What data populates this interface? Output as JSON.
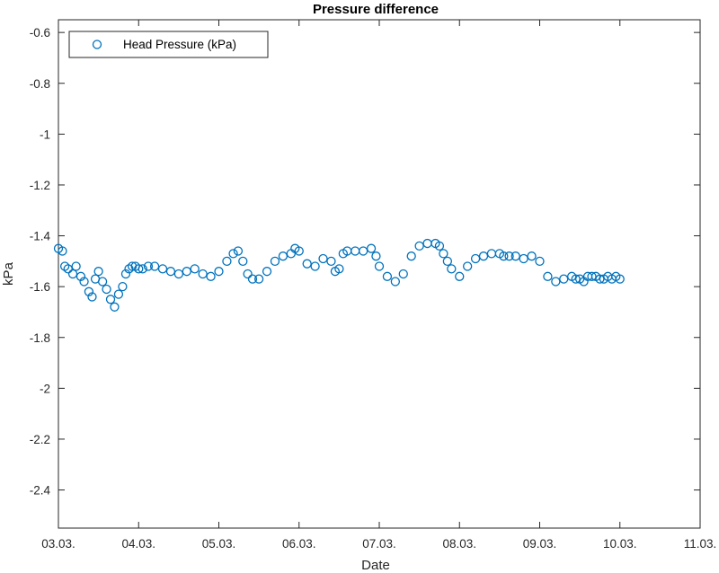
{
  "chart_data": {
    "type": "scatter",
    "title": "Pressure difference",
    "xlabel": "Date",
    "ylabel": "kPa",
    "x_tick_labels": [
      "03.03.",
      "04.03.",
      "05.03.",
      "06.03.",
      "07.03.",
      "08.03.",
      "09.03.",
      "10.03.",
      "11.03."
    ],
    "xlim": [
      0,
      8
    ],
    "ylim": [
      -2.55,
      -0.55
    ],
    "y_ticks": [
      -0.6,
      -0.8,
      -1,
      -1.2,
      -1.4,
      -1.6,
      -1.8,
      -2,
      -2.2,
      -2.4
    ],
    "y_tick_labels": [
      "-0.6",
      "-0.8",
      "-1",
      "-1.2",
      "-1.4",
      "-1.6",
      "-1.8",
      "-2",
      "-2.2",
      "-2.4"
    ],
    "grid": false,
    "legend_position": "top-left",
    "marker": "open-circle",
    "series": [
      {
        "name": "Head Pressure (kPa)",
        "color": "#0072BD",
        "x": [
          0.0,
          0.05,
          0.08,
          0.12,
          0.18,
          0.22,
          0.28,
          0.32,
          0.38,
          0.42,
          0.46,
          0.5,
          0.55,
          0.6,
          0.65,
          0.7,
          0.75,
          0.8,
          0.84,
          0.88,
          0.92,
          0.96,
          1.0,
          1.05,
          1.12,
          1.2,
          1.3,
          1.4,
          1.5,
          1.6,
          1.7,
          1.8,
          1.9,
          2.0,
          2.1,
          2.18,
          2.24,
          2.3,
          2.36,
          2.42,
          2.5,
          2.6,
          2.7,
          2.8,
          2.9,
          2.95,
          3.0,
          3.1,
          3.2,
          3.3,
          3.4,
          3.45,
          3.5,
          3.55,
          3.6,
          3.7,
          3.8,
          3.9,
          3.96,
          4.0,
          4.1,
          4.2,
          4.3,
          4.4,
          4.5,
          4.6,
          4.7,
          4.75,
          4.8,
          4.85,
          4.9,
          5.0,
          5.1,
          5.2,
          5.3,
          5.4,
          5.5,
          5.55,
          5.62,
          5.7,
          5.8,
          5.9,
          6.0,
          6.1,
          6.2,
          6.3,
          6.4,
          6.45,
          6.5,
          6.55,
          6.6,
          6.65,
          6.7,
          6.75,
          6.8,
          6.85,
          6.9,
          6.95,
          7.0
        ],
        "y": [
          -1.45,
          -1.46,
          -1.52,
          -1.53,
          -1.55,
          -1.52,
          -1.56,
          -1.58,
          -1.62,
          -1.64,
          -1.57,
          -1.54,
          -1.58,
          -1.61,
          -1.65,
          -1.68,
          -1.63,
          -1.6,
          -1.55,
          -1.53,
          -1.52,
          -1.52,
          -1.53,
          -1.53,
          -1.52,
          -1.52,
          -1.53,
          -1.54,
          -1.55,
          -1.54,
          -1.53,
          -1.55,
          -1.56,
          -1.54,
          -1.5,
          -1.47,
          -1.46,
          -1.5,
          -1.55,
          -1.57,
          -1.57,
          -1.54,
          -1.5,
          -1.48,
          -1.47,
          -1.45,
          -1.46,
          -1.51,
          -1.52,
          -1.49,
          -1.5,
          -1.54,
          -1.53,
          -1.47,
          -1.46,
          -1.46,
          -1.46,
          -1.45,
          -1.48,
          -1.52,
          -1.56,
          -1.58,
          -1.55,
          -1.48,
          -1.44,
          -1.43,
          -1.43,
          -1.44,
          -1.47,
          -1.5,
          -1.53,
          -1.56,
          -1.52,
          -1.49,
          -1.48,
          -1.47,
          -1.47,
          -1.48,
          -1.48,
          -1.48,
          -1.49,
          -1.48,
          -1.5,
          -1.56,
          -1.58,
          -1.57,
          -1.56,
          -1.57,
          -1.57,
          -1.58,
          -1.56,
          -1.56,
          -1.56,
          -1.57,
          -1.57,
          -1.56,
          -1.57,
          -1.56,
          -1.57
        ]
      }
    ]
  }
}
